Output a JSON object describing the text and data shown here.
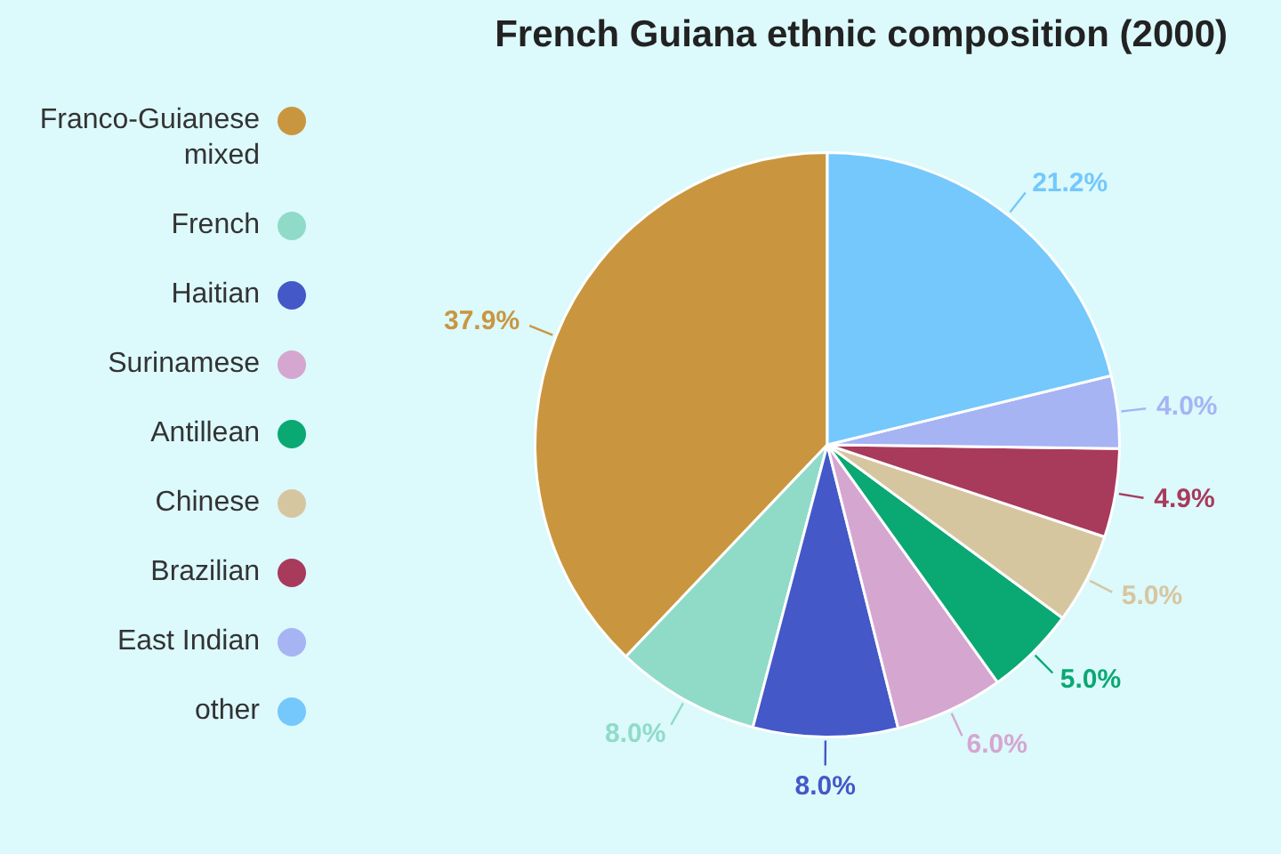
{
  "chart_data": {
    "type": "pie",
    "title": "French Guiana ethnic composition (2000)",
    "categories": [
      "Franco-Guianese mixed",
      "French",
      "Haitian",
      "Surinamese",
      "Antillean",
      "Chinese",
      "Brazilian",
      "East Indian",
      "other"
    ],
    "values": [
      37.9,
      8.0,
      8.0,
      6.0,
      5.0,
      5.0,
      4.9,
      4.0,
      21.2
    ],
    "value_labels": [
      "37.9%",
      "8.0%",
      "8.0%",
      "6.0%",
      "5.0%",
      "5.0%",
      "4.9%",
      "4.0%",
      "21.2%"
    ],
    "colors": [
      "#c9963f",
      "#8fdbc8",
      "#4458c8",
      "#d5a6d0",
      "#0aa872",
      "#d6c6a0",
      "#a83a5c",
      "#a6b4f4",
      "#74c8fb"
    ],
    "legend": "left"
  }
}
